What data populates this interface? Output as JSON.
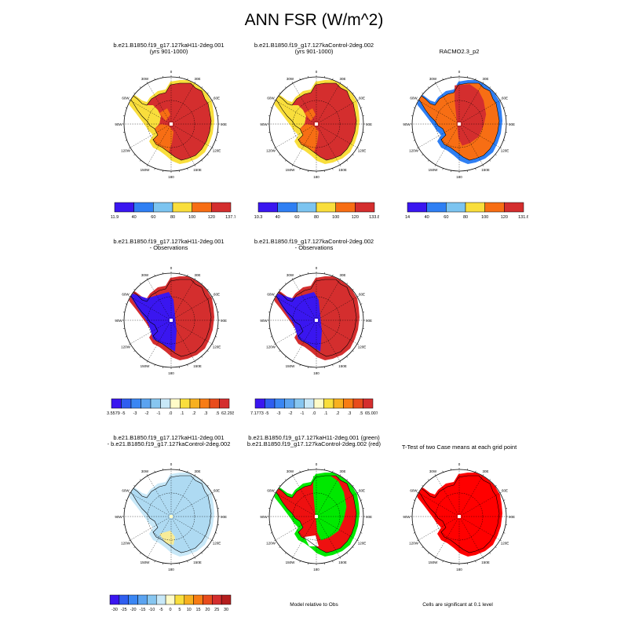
{
  "figure": {
    "title": "ANN FSR (W/m^2)"
  },
  "rows": [
    {
      "panels": [
        {
          "title": "b.e21.B1850.f19_g17.127kaH11-2deg.001\n(yrs 901-1000)",
          "scheme": "abs"
        },
        {
          "title": "b.e21.B1850.f19_g17.127kaControl-2deg.002\n(yrs 901-1000)",
          "scheme": "abs"
        },
        {
          "title": "RACMO2.3_p2",
          "scheme": "racmo"
        }
      ],
      "colorbars": [
        {
          "colors": [
            "#3a16f0",
            "#2f7ff3",
            "#7cc4f0",
            "#f9de3c",
            "#f76e14",
            "#d42e2e"
          ],
          "labels": [
            "11.9",
            "40",
            "60",
            "80",
            "100",
            "120",
            "137.7"
          ]
        },
        {
          "colors": [
            "#3a16f0",
            "#2f7ff3",
            "#7cc4f0",
            "#f9de3c",
            "#f76e14",
            "#d42e2e"
          ],
          "labels": [
            "10.3",
            "40",
            "60",
            "80",
            "100",
            "120",
            "133.8"
          ]
        },
        {
          "colors": [
            "#3a16f0",
            "#2f7ff3",
            "#7cc4f0",
            "#f9de3c",
            "#f76e14",
            "#d42e2e"
          ],
          "labels": [
            "14",
            "40",
            "60",
            "80",
            "100",
            "120",
            "131.6"
          ]
        }
      ]
    },
    {
      "panels": [
        {
          "title": "b.e21.B1850.f19_g17.127kaH11-2deg.001\n- Observations",
          "scheme": "obs"
        },
        {
          "title": "b.e21.B1850.f19_g17.127kaControl-2deg.002\n- Observations",
          "scheme": "obs"
        }
      ],
      "colorbars": [
        {
          "colors": [
            "#3a16f0",
            "#2f5ef0",
            "#3a86f3",
            "#5ba3f0",
            "#87c6f0",
            "#c8e8f8",
            "#fffbc8",
            "#f9de3c",
            "#f7b020",
            "#f77c14",
            "#e84c1c",
            "#d42e2e"
          ],
          "labels": [
            "-23.5579",
            "-5",
            "-3",
            "-2",
            "-1",
            ".0",
            ".1",
            ".2",
            ".3",
            ".5",
            "62.2938"
          ]
        },
        {
          "colors": [
            "#3a16f0",
            "#2f5ef0",
            "#3a86f3",
            "#5ba3f0",
            "#87c6f0",
            "#c8e8f8",
            "#fffbc8",
            "#f9de3c",
            "#f7b020",
            "#f77c14",
            "#e84c1c",
            "#d42e2e"
          ],
          "labels": [
            "-17.1773",
            "-5",
            "-3",
            "-2",
            "-1",
            ".0",
            ".1",
            ".2",
            ".3",
            ".5",
            "65.0079"
          ]
        }
      ]
    },
    {
      "panels": [
        {
          "title": "b.e21.B1850.f19_g17.127kaH11-2deg.001\n- b.e21.B1850.f19_g17.127kaControl-2deg.002",
          "scheme": "diff"
        },
        {
          "title": "b.e21.B1850.f19_g17.127kaH11-2deg.001 (green)\nb.e21.B1850.f19_g17.127kaControl-2deg.002 (red)",
          "scheme": "greenred"
        },
        {
          "title": "T-Test of two Case means at each grid point",
          "scheme": "ttest"
        }
      ],
      "colorbars": [
        {
          "colors": [
            "#3a16f0",
            "#2f5ef0",
            "#3a86f3",
            "#5ba3f0",
            "#87c6f0",
            "#c8e8f8",
            "#fffbc8",
            "#f9de3c",
            "#f7b020",
            "#f77c14",
            "#e84c1c",
            "#d42e2e",
            "#b41e1e"
          ],
          "labels": [
            "-30",
            "-25",
            "-20",
            "-15",
            "-10",
            "-5",
            "0",
            "5",
            "10",
            "15",
            "20",
            "25",
            "30"
          ]
        }
      ],
      "notes": [
        "Model relative to Obs",
        "Cells are significant at 0.1 level"
      ]
    }
  ],
  "map_labels": {
    "top": "0",
    "bottom": "180",
    "left": "90W",
    "right": "90E",
    "tl1": "30W",
    "tl2": "60W",
    "tr1": "30E",
    "tr2": "60E",
    "bl1": "120W",
    "bl2": "150W",
    "br1": "120E",
    "br2": "150E"
  },
  "scheme_colors": {
    "abs": {
      "fill": "#d42e2e",
      "peninsula": "#f9de3c",
      "west": "#f76e14",
      "edge": "#f9de3c",
      "dot": "#ffffff"
    },
    "racmo": {
      "fill": "#f76e14",
      "peninsula": "#f76e14",
      "west": "#f76e14",
      "east": "#d42e2e",
      "edge": "#2f7ff3",
      "dot": "#ffffff"
    },
    "obs": {
      "fill": "#d42e2e",
      "peninsula": "#3a16f0",
      "west": "#3a16f0",
      "edge": "#d42e2e",
      "dot": "#ffffff"
    },
    "diff": {
      "fill": "#aedaf2",
      "peninsula": "#aedaf2",
      "west": "#aedaf2",
      "edge": "#c8e8f8",
      "dot": "#fffbc8"
    },
    "greenred": {
      "fill": "#00e800",
      "peninsula": "#ee1010",
      "west": "#ee1010",
      "edge": "#00e800",
      "dot": "#ffffff"
    },
    "ttest": {
      "fill": "#ff0000",
      "peninsula": "#ff0000",
      "west": "#ff0000",
      "edge": "#ff0000",
      "dot": "#ffffff"
    }
  }
}
